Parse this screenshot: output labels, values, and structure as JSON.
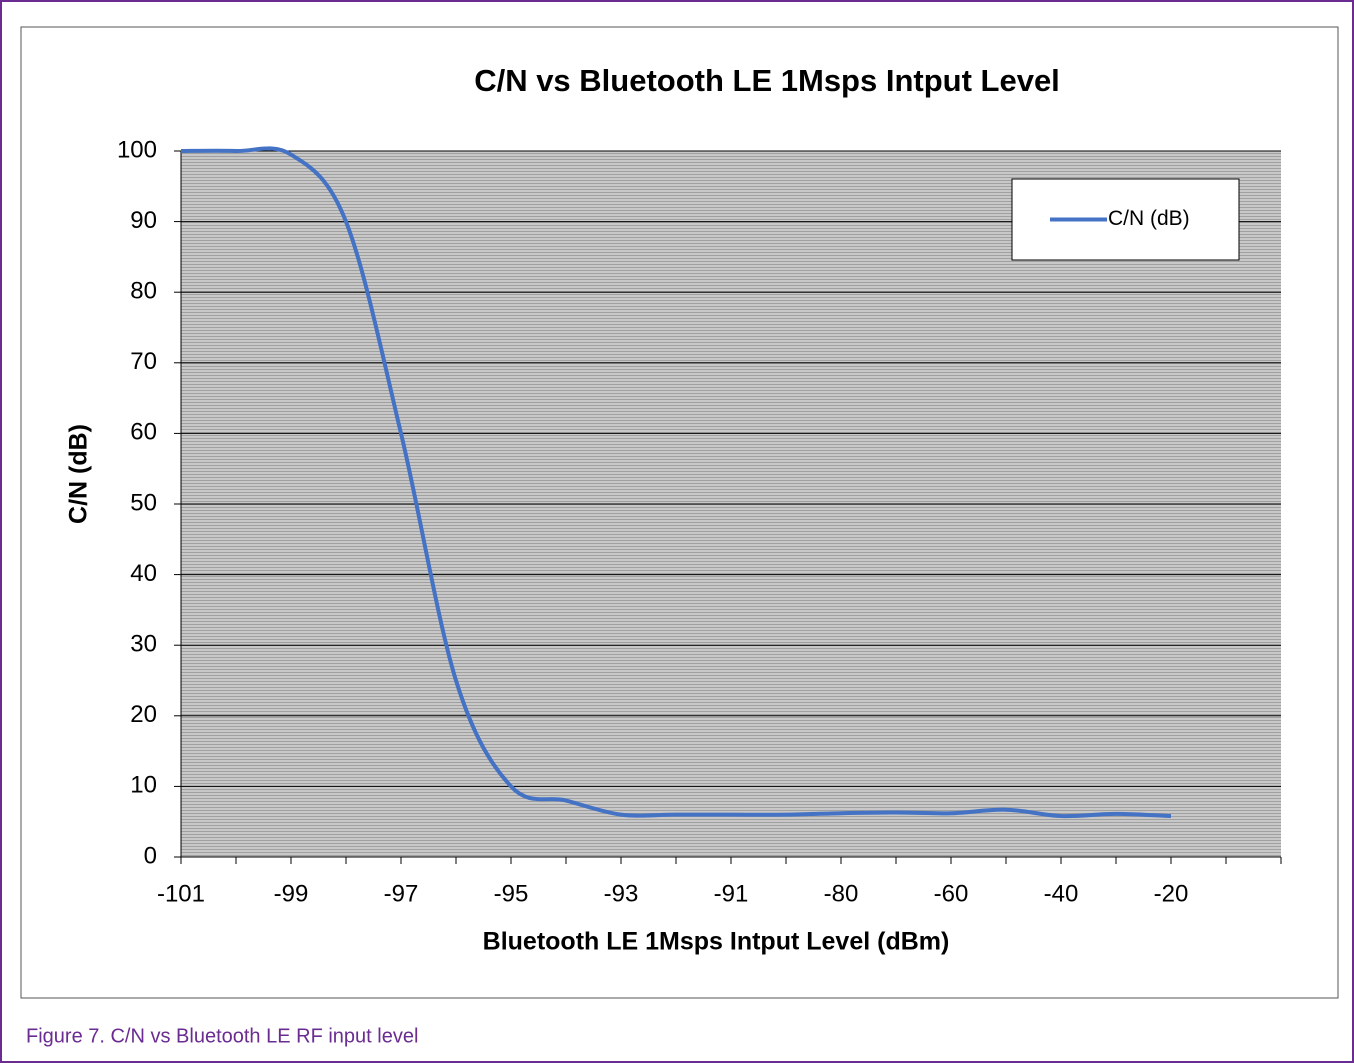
{
  "chart_data": {
    "type": "line",
    "title": "C/N vs Bluetooth LE 1Msps Intput Level",
    "x_label": "Bluetooth LE 1Msps Intput Level (dBm)",
    "y_label": "C/N (dB)",
    "categories": [
      "-101",
      null,
      "-99",
      null,
      "-97",
      null,
      "-95",
      null,
      "-93",
      null,
      "-91",
      null,
      "-80",
      null,
      "-60",
      null,
      "-40",
      null,
      "-20",
      null,
      null
    ],
    "series": [
      {
        "name": "C/N (dB)",
        "color": "#4472c4",
        "values": [
          100,
          100,
          99.5,
          90,
          60,
          25,
          10,
          8,
          6,
          6,
          6,
          6,
          6.2,
          6.3,
          6.2,
          6.7,
          5.8,
          6.1,
          5.8,
          null,
          null
        ]
      }
    ],
    "ylim": [
      0,
      100
    ],
    "yticks": [
      0,
      10,
      20,
      30,
      40,
      50,
      60,
      70,
      80,
      90,
      100
    ],
    "grid": true,
    "legend": "top-right",
    "smooth": true
  },
  "caption": "Figure 7.  C/N vs Bluetooth LE RF input level"
}
